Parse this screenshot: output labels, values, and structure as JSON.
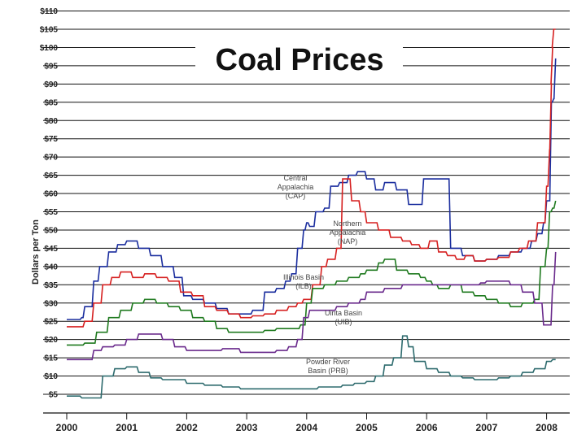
{
  "chart_data": {
    "type": "line",
    "title": "Coal Prices",
    "xlabel": "",
    "ylabel": "Dollars per Ton",
    "xlim": [
      2000,
      2008.2
    ],
    "ylim": [
      2.5,
      110
    ],
    "y_ticks": [
      "$5",
      "$10",
      "$15",
      "$20",
      "$25",
      "$30",
      "$35",
      "$40",
      "$45",
      "$50",
      "$55",
      "$60",
      "$65",
      "$70",
      "$75",
      "$80",
      "$85",
      "$90",
      "$95",
      "$100",
      "$105",
      "$110"
    ],
    "y_tick_values": [
      5,
      10,
      15,
      20,
      25,
      30,
      35,
      40,
      45,
      50,
      55,
      60,
      65,
      70,
      75,
      80,
      85,
      90,
      95,
      100,
      105,
      110
    ],
    "x_ticks": [
      "2000",
      "2001",
      "2002",
      "2003",
      "2004",
      "2005",
      "2006",
      "2007",
      "2008"
    ],
    "x_tick_values": [
      2000,
      2001,
      2002,
      2003,
      2004,
      2005,
      2006,
      2007,
      2008
    ],
    "grid": true,
    "series": [
      {
        "name": "Central Appalachia (CAP)",
        "label_lines": [
          "Central",
          "Appalachia",
          "(CAP)"
        ],
        "color": "#1a2d9e",
        "x": [
          2000.0,
          2000.15,
          2000.25,
          2000.3,
          2000.45,
          2000.55,
          2000.7,
          2000.85,
          2001.0,
          2001.2,
          2001.4,
          2001.6,
          2001.8,
          2001.95,
          2002.1,
          2002.3,
          2002.5,
          2002.7,
          2002.9,
          2003.1,
          2003.3,
          2003.5,
          2003.65,
          2003.75,
          2003.85,
          2003.95,
          2004.0,
          2004.05,
          2004.15,
          2004.3,
          2004.4,
          2004.55,
          2004.7,
          2004.85,
          2005.0,
          2005.15,
          2005.3,
          2005.5,
          2005.7,
          2005.85,
          2005.95,
          2006.05,
          2006.2,
          2006.4,
          2006.6,
          2006.8,
          2007.0,
          2007.2,
          2007.4,
          2007.6,
          2007.75,
          2007.85,
          2007.95,
          2008.0,
          2008.08,
          2008.12,
          2008.15
        ],
        "y": [
          25.5,
          25.5,
          26,
          29,
          36,
          40,
          44,
          46,
          47,
          45,
          43,
          40,
          37,
          32,
          31,
          30,
          28.5,
          27,
          27,
          28,
          33,
          34,
          36,
          38,
          45,
          50,
          52,
          51,
          55,
          56,
          62,
          63,
          65,
          66,
          64,
          61,
          63,
          61,
          57,
          57,
          64,
          64,
          64,
          45,
          43,
          41.5,
          42,
          43,
          44,
          45,
          47,
          49,
          52,
          58,
          85,
          86,
          97
        ]
      },
      {
        "name": "Northern Appalachia (NAP)",
        "label_lines": [
          "Northern",
          "Appalachia",
          "(NAP)"
        ],
        "color": "#d62020",
        "x": [
          2000.0,
          2000.2,
          2000.3,
          2000.45,
          2000.6,
          2000.75,
          2000.9,
          2001.1,
          2001.3,
          2001.5,
          2001.7,
          2001.9,
          2002.1,
          2002.3,
          2002.5,
          2002.7,
          2002.9,
          2003.1,
          2003.3,
          2003.5,
          2003.7,
          2003.85,
          2003.95,
          2004.1,
          2004.25,
          2004.35,
          2004.5,
          2004.6,
          2004.75,
          2004.9,
          2005.0,
          2005.2,
          2005.4,
          2005.6,
          2005.75,
          2005.9,
          2006.05,
          2006.2,
          2006.35,
          2006.5,
          2006.65,
          2006.8,
          2007.0,
          2007.2,
          2007.4,
          2007.55,
          2007.7,
          2007.85,
          2008.0,
          2008.05,
          2008.08,
          2008.1,
          2008.12,
          2008.15
        ],
        "y": [
          23.5,
          23.5,
          25,
          30,
          35,
          37,
          38.5,
          37,
          38,
          37,
          36,
          33,
          32,
          29,
          28,
          27,
          26,
          26.5,
          27,
          28,
          29,
          30,
          31,
          35,
          40,
          42,
          45,
          64,
          58,
          55,
          52,
          50,
          48,
          47,
          46,
          45,
          47,
          44,
          43,
          42,
          43,
          41.5,
          42,
          42.5,
          44,
          45,
          47,
          52,
          62,
          72,
          90,
          100,
          105,
          105
        ]
      },
      {
        "name": "Illinois Basin (ILB)",
        "label_lines": [
          "Illinois Basin",
          "(ILB)"
        ],
        "color": "#1f7a1f",
        "x": [
          2000.0,
          2000.2,
          2000.3,
          2000.5,
          2000.7,
          2000.9,
          2001.1,
          2001.3,
          2001.5,
          2001.7,
          2001.9,
          2002.1,
          2002.3,
          2002.5,
          2002.7,
          2002.9,
          2003.1,
          2003.3,
          2003.5,
          2003.7,
          2003.9,
          2004.0,
          2004.1,
          2004.3,
          2004.5,
          2004.7,
          2004.9,
          2005.0,
          2005.2,
          2005.3,
          2005.5,
          2005.7,
          2005.9,
          2006.0,
          2006.1,
          2006.2,
          2006.4,
          2006.6,
          2006.8,
          2007.0,
          2007.2,
          2007.4,
          2007.6,
          2007.8,
          2007.9,
          2008.0,
          2008.05,
          2008.1,
          2008.15
        ],
        "y": [
          18.5,
          18.5,
          19,
          22,
          26,
          28,
          30,
          31,
          30,
          29,
          28,
          26,
          25,
          23,
          22,
          22,
          22,
          22.5,
          23,
          23,
          24,
          30,
          34,
          35,
          36,
          37,
          38,
          39,
          41,
          42,
          39,
          38,
          37,
          36,
          35,
          34,
          35,
          33,
          32,
          31,
          30,
          29,
          30,
          31,
          40,
          45,
          55,
          56,
          58
        ]
      },
      {
        "name": "Uinta Basin (UIB)",
        "label_lines": [
          "Uinta Basin",
          "(UIB)"
        ],
        "color": "#6a2a8c",
        "x": [
          2000.0,
          2000.3,
          2000.45,
          2000.6,
          2000.8,
          2001.0,
          2001.2,
          2001.4,
          2001.6,
          2001.8,
          2002.0,
          2002.3,
          2002.6,
          2002.9,
          2003.2,
          2003.5,
          2003.7,
          2003.85,
          2003.95,
          2004.05,
          2004.3,
          2004.5,
          2004.7,
          2004.9,
          2005.0,
          2005.3,
          2005.6,
          2005.9,
          2006.1,
          2006.3,
          2006.5,
          2006.7,
          2006.9,
          2007.0,
          2007.2,
          2007.4,
          2007.6,
          2007.8,
          2007.95,
          2008.05,
          2008.1,
          2008.15
        ],
        "y": [
          14.5,
          14.5,
          17,
          18,
          18.5,
          20,
          21.5,
          21.5,
          20,
          18,
          17,
          17,
          17.5,
          16.5,
          16.5,
          17,
          18,
          20,
          26,
          28,
          28,
          29,
          30,
          31,
          33,
          34,
          35,
          35,
          35,
          35,
          35,
          35,
          35.5,
          36,
          36,
          35,
          33,
          30,
          24,
          24,
          35,
          44
        ]
      },
      {
        "name": "Powder River Basin (PRB)",
        "label_lines": [
          "Powder River",
          "Basin (PRB)"
        ],
        "color": "#2e6b6e",
        "x": [
          2000.0,
          2000.15,
          2000.25,
          2000.35,
          2000.45,
          2000.6,
          2000.8,
          2001.0,
          2001.2,
          2001.4,
          2001.6,
          2001.8,
          2002.0,
          2002.3,
          2002.6,
          2002.9,
          2003.2,
          2003.5,
          2003.8,
          2004.0,
          2004.2,
          2004.4,
          2004.6,
          2004.8,
          2005.0,
          2005.15,
          2005.3,
          2005.45,
          2005.6,
          2005.7,
          2005.8,
          2006.0,
          2006.2,
          2006.4,
          2006.6,
          2006.8,
          2007.0,
          2007.2,
          2007.4,
          2007.6,
          2007.8,
          2008.0,
          2008.1,
          2008.15
        ],
        "y": [
          4.5,
          4.5,
          4,
          4,
          4,
          10,
          12,
          12.5,
          11,
          9.5,
          9,
          9,
          8,
          7.5,
          7,
          6.5,
          6.5,
          6.5,
          6.5,
          6.5,
          7,
          7,
          7.5,
          8,
          8.5,
          10,
          13,
          15,
          21,
          18,
          14,
          12,
          11,
          10,
          9.5,
          9,
          9,
          9.5,
          10,
          11,
          12,
          14,
          14.5,
          14.5
        ]
      }
    ]
  }
}
